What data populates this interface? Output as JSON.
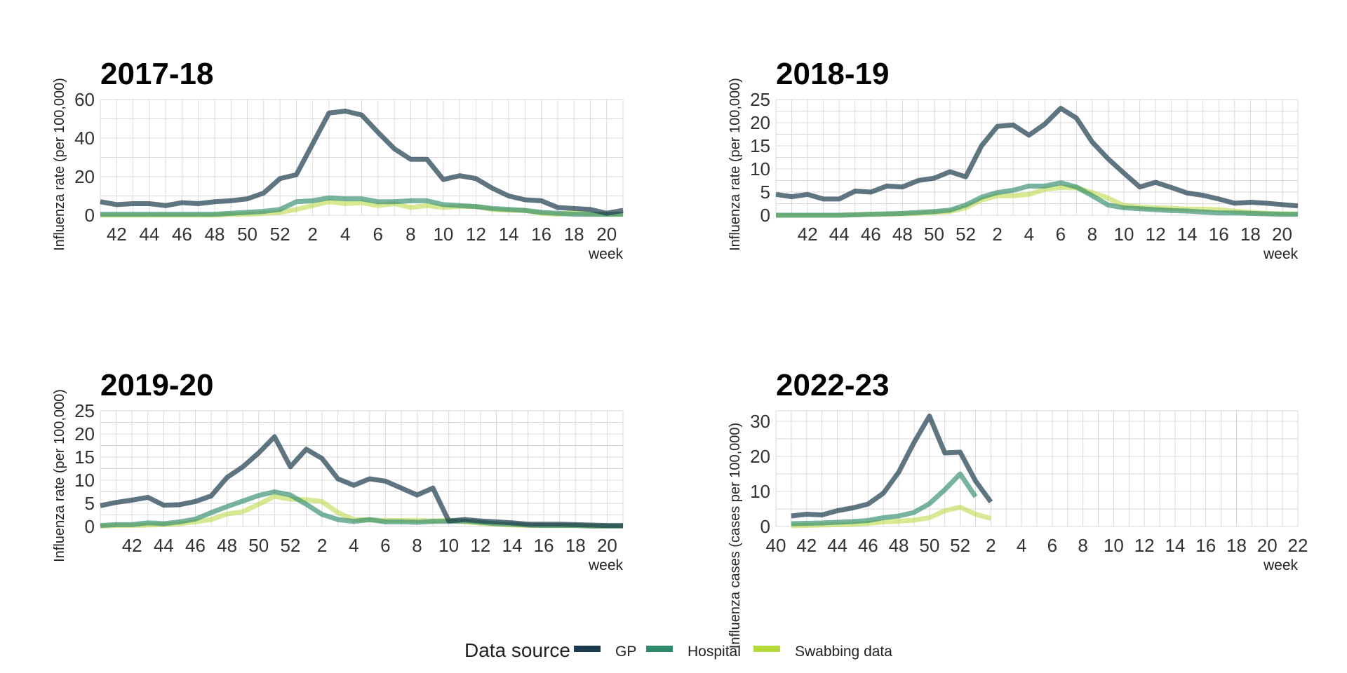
{
  "legend": {
    "title": "Data source",
    "items": [
      {
        "label": "GP",
        "color": "#1c3a4d"
      },
      {
        "label": "Hospital",
        "color": "#2e8a6c"
      },
      {
        "label": "Swabbing data",
        "color": "#b6d93b"
      }
    ]
  },
  "chart_data": [
    {
      "type": "line",
      "title": "2017-18",
      "ylabel": "Influenza rate (per 100,000)",
      "xlabel": "week",
      "ylim": [
        0,
        60
      ],
      "yticks": [
        0,
        20,
        40,
        60
      ],
      "weeks": [
        41,
        42,
        43,
        44,
        45,
        46,
        47,
        48,
        49,
        50,
        51,
        52,
        1,
        2,
        3,
        4,
        5,
        6,
        7,
        8,
        9,
        10,
        11,
        12,
        13,
        14,
        15,
        16,
        17,
        18,
        19,
        20,
        21
      ],
      "xtick_labels": [
        "42",
        "44",
        "46",
        "48",
        "50",
        "52",
        "2",
        "4",
        "6",
        "8",
        "10",
        "12",
        "14",
        "16",
        "18",
        "20"
      ],
      "series": [
        {
          "name": "GP",
          "values": [
            7,
            5.5,
            6,
            6,
            5,
            6.5,
            6,
            7,
            7.5,
            8.5,
            11.5,
            19,
            21,
            37,
            53,
            54,
            52,
            43,
            34.5,
            29,
            29,
            18.5,
            20.5,
            19,
            14,
            10,
            8,
            7.5,
            4,
            3.5,
            3,
            1,
            2.5
          ]
        },
        {
          "name": "Hospital",
          "values": [
            0.5,
            0.5,
            0.5,
            0.5,
            0.5,
            0.5,
            0.5,
            0.5,
            1,
            1.5,
            2,
            3,
            7,
            7.5,
            9,
            8.5,
            8.5,
            7,
            7,
            7.5,
            7.5,
            5.5,
            5,
            4.5,
            3.5,
            3,
            2.5,
            1.5,
            1,
            0.5,
            0.5,
            0.5,
            0.5
          ]
        },
        {
          "name": "Swabbing data",
          "values": [
            0,
            0,
            0,
            0,
            0,
            0,
            0,
            0,
            0.5,
            0.5,
            1,
            1.5,
            3,
            5,
            7,
            6,
            6.5,
            5,
            6,
            4,
            5,
            4,
            4.5,
            4.5,
            3,
            2.5,
            2.5,
            1,
            0.5,
            1.5,
            0.5,
            0.5,
            0.5
          ]
        }
      ]
    },
    {
      "type": "line",
      "title": "2018-19",
      "ylabel": "Influenza rate (per 100,000)",
      "xlabel": "week",
      "ylim": [
        0,
        25
      ],
      "yticks": [
        0,
        5,
        10,
        15,
        20,
        25
      ],
      "weeks": [
        40,
        41,
        42,
        43,
        44,
        45,
        46,
        47,
        48,
        49,
        50,
        51,
        52,
        1,
        2,
        3,
        4,
        5,
        6,
        7,
        8,
        9,
        10,
        11,
        12,
        13,
        14,
        15,
        16,
        17,
        18,
        19,
        20,
        21
      ],
      "xtick_labels": [
        "42",
        "44",
        "46",
        "48",
        "50",
        "52",
        "2",
        "4",
        "6",
        "8",
        "10",
        "12",
        "14",
        "16",
        "18",
        "20"
      ],
      "series": [
        {
          "name": "GP",
          "values": [
            4.5,
            4,
            4.5,
            3.5,
            3.5,
            5.2,
            5,
            6.3,
            6.1,
            7.5,
            8,
            9.4,
            8.3,
            15,
            19.2,
            19.5,
            17.3,
            19.7,
            23.1,
            21,
            15.8,
            12.2,
            9.1,
            6.1,
            7.1,
            6,
            4.8,
            4.3,
            3.5,
            2.6,
            2.8,
            2.6,
            2.3,
            2
          ]
        },
        {
          "name": "Hospital",
          "values": [
            0,
            0,
            0,
            0,
            0,
            0.1,
            0.2,
            0.3,
            0.4,
            0.6,
            0.8,
            1.1,
            2.2,
            3.9,
            4.9,
            5.4,
            6.3,
            6.3,
            7,
            6.1,
            4.2,
            2.2,
            1.6,
            1.4,
            1.2,
            1,
            0.9,
            0.7,
            0.5,
            0.5,
            0.4,
            0.3,
            0.2,
            0.2
          ]
        },
        {
          "name": "Swabbing data",
          "values": [
            0,
            0,
            0,
            0,
            0,
            0.1,
            0.2,
            0.2,
            0.3,
            0.4,
            0.6,
            0.8,
            1.6,
            3.3,
            4.2,
            4.2,
            4.5,
            5.6,
            6,
            5.9,
            4.9,
            3.7,
            2.1,
            1.8,
            1.6,
            1.5,
            1.3,
            1.3,
            1.2,
            0.9,
            0.6,
            0.4,
            0.3,
            0.3
          ]
        }
      ]
    },
    {
      "type": "line",
      "title": "2019-20",
      "ylabel": "Influenza rate (per 100,000)",
      "xlabel": "week",
      "ylim": [
        0,
        25
      ],
      "yticks": [
        0,
        5,
        10,
        15,
        20,
        25
      ],
      "weeks": [
        40,
        41,
        42,
        43,
        44,
        45,
        46,
        47,
        48,
        49,
        50,
        51,
        52,
        1,
        2,
        3,
        4,
        5,
        6,
        7,
        8,
        9,
        10,
        11,
        12,
        13,
        14,
        15,
        16,
        17,
        18,
        19,
        20,
        21
      ],
      "xtick_labels": [
        "42",
        "44",
        "46",
        "48",
        "50",
        "52",
        "2",
        "4",
        "6",
        "8",
        "10",
        "12",
        "14",
        "16",
        "18",
        "20"
      ],
      "series": [
        {
          "name": "GP",
          "values": [
            4.5,
            5.2,
            5.7,
            6.3,
            4.6,
            4.7,
            5.4,
            6.6,
            10.6,
            12.9,
            15.9,
            19.4,
            12.9,
            16.7,
            14.7,
            10.3,
            8.9,
            10.3,
            9.8,
            8.3,
            6.8,
            8.3,
            1.2,
            1.5,
            1.2,
            1,
            0.8,
            0.5,
            0.5,
            0.5,
            0.4,
            0.3,
            0.2,
            0.2
          ]
        },
        {
          "name": "Hospital",
          "values": [
            0.2,
            0.4,
            0.4,
            0.8,
            0.6,
            1,
            1.6,
            3,
            4.3,
            5.5,
            6.7,
            7.5,
            6.8,
            4.8,
            2.6,
            1.5,
            1.1,
            1.5,
            1,
            1,
            0.9,
            1.1,
            1.1,
            1.2,
            0.9,
            0.6,
            0.5,
            0.3,
            0.2,
            0.2,
            0.2,
            0.1,
            0.1,
            0.1
          ]
        },
        {
          "name": "Swabbing data",
          "values": [
            0.1,
            0.2,
            0.2,
            0.3,
            0.4,
            0.6,
            1,
            1.5,
            2.7,
            3.2,
            4.8,
            6.5,
            5.9,
            5.8,
            5.4,
            3,
            1.5,
            1.4,
            1.3,
            1.3,
            1.3,
            1.2,
            1.4,
            1,
            0.7,
            0.5,
            0.3,
            0.2,
            0.2,
            0.2,
            0.2,
            0.1,
            0.1,
            0.1
          ]
        }
      ]
    },
    {
      "type": "line",
      "title": "2022-23",
      "ylabel": "Influenza cases (cases per 100,000)",
      "xlabel": "week",
      "ylim": [
        0,
        33
      ],
      "yticks": [
        0,
        10,
        20,
        30
      ],
      "weeks": [
        40,
        41,
        42,
        43,
        44,
        45,
        46,
        47,
        48,
        49,
        50,
        51,
        52,
        1,
        2,
        3,
        4,
        5,
        6,
        7,
        8,
        9,
        10,
        11,
        12,
        13,
        14,
        15,
        16,
        17,
        18,
        19,
        20,
        21,
        22
      ],
      "xtick_labels": [
        "40",
        "42",
        "44",
        "46",
        "48",
        "50",
        "52",
        "2",
        "4",
        "6",
        "8",
        "10",
        "12",
        "14",
        "16",
        "18",
        "20",
        "22"
      ],
      "series": [
        {
          "name": "GP",
          "values": [
            null,
            3,
            3.5,
            3.3,
            4.5,
            5.3,
            6.4,
            9.5,
            15.5,
            24,
            31.5,
            21,
            21.2,
            13,
            7
          ]
        },
        {
          "name": "Hospital",
          "values": [
            null,
            0.8,
            0.9,
            1,
            1.2,
            1.4,
            1.7,
            2.5,
            3,
            4,
            6.5,
            10.5,
            15,
            8.5,
            null
          ]
        },
        {
          "name": "Swabbing data",
          "values": [
            null,
            0.2,
            0.3,
            0.4,
            0.5,
            0.6,
            0.9,
            1.3,
            1.5,
            1.8,
            2.5,
            4.5,
            5.5,
            3.5,
            2.3
          ]
        }
      ]
    }
  ]
}
